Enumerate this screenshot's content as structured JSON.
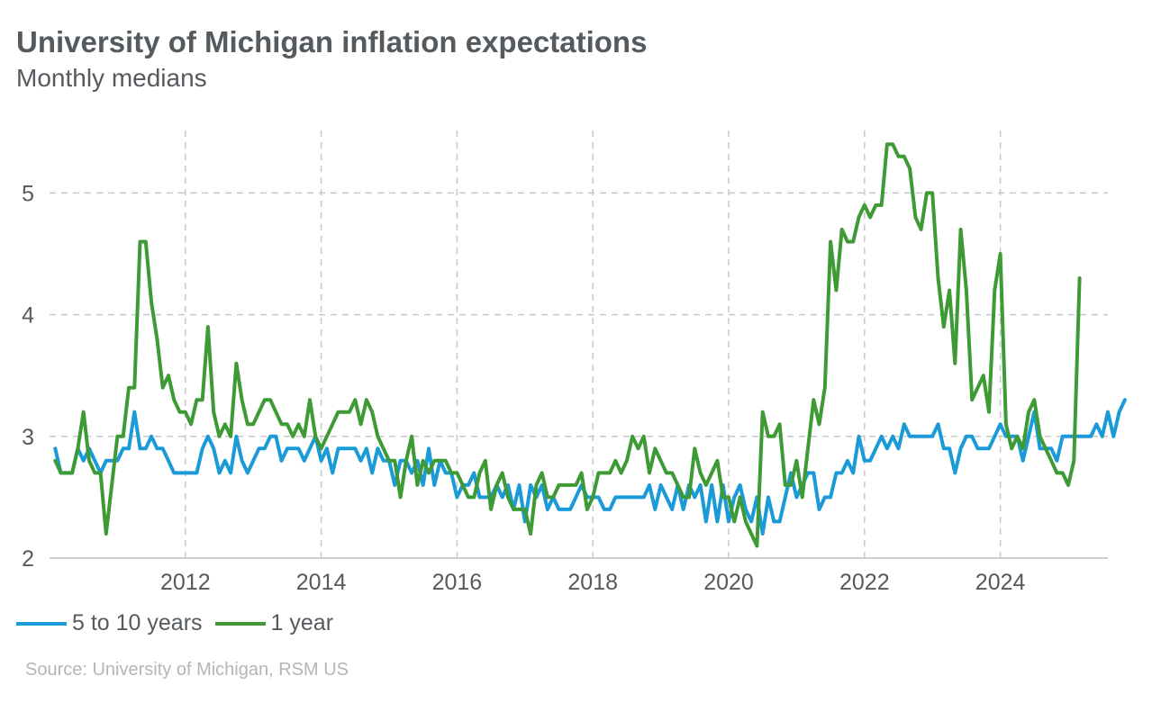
{
  "chart_data": {
    "type": "line",
    "title": "University of Michigan inflation expectations",
    "subtitle": "Monthly medians",
    "source": "Source: University of Michigan, RSM US",
    "x_start": "2010-02",
    "xlim": [
      "2010-01",
      "2025-08"
    ],
    "ylim": [
      2,
      5.55
    ],
    "yticks": [
      2,
      3,
      4,
      5
    ],
    "xticks": [
      "2012",
      "2014",
      "2016",
      "2018",
      "2020",
      "2022",
      "2024"
    ],
    "grid": true,
    "legend_position": "bottom-left",
    "series": [
      {
        "name": "5 to 10 years",
        "color": "#1a9ad6",
        "values": [
          2.9,
          2.7,
          2.7,
          2.7,
          2.9,
          2.8,
          2.9,
          2.8,
          2.7,
          2.8,
          2.8,
          2.8,
          2.9,
          2.9,
          3.2,
          2.9,
          2.9,
          3.0,
          2.9,
          2.9,
          2.8,
          2.7,
          2.7,
          2.7,
          2.7,
          2.7,
          2.9,
          3.0,
          2.9,
          2.7,
          2.8,
          2.7,
          3.0,
          2.8,
          2.7,
          2.8,
          2.9,
          2.9,
          3.0,
          3.0,
          2.8,
          2.9,
          2.9,
          2.9,
          2.8,
          2.9,
          3.0,
          2.8,
          2.9,
          2.7,
          2.9,
          2.9,
          2.9,
          2.9,
          2.8,
          2.9,
          2.7,
          2.9,
          2.8,
          2.8,
          2.6,
          2.8,
          2.8,
          2.7,
          2.8,
          2.6,
          2.9,
          2.6,
          2.8,
          2.7,
          2.7,
          2.5,
          2.6,
          2.6,
          2.7,
          2.5,
          2.5,
          2.5,
          2.6,
          2.5,
          2.6,
          2.4,
          2.6,
          2.3,
          2.6,
          2.5,
          2.6,
          2.4,
          2.5,
          2.4,
          2.4,
          2.4,
          2.5,
          2.6,
          2.5,
          2.5,
          2.5,
          2.4,
          2.4,
          2.5,
          2.5,
          2.5,
          2.5,
          2.5,
          2.5,
          2.6,
          2.4,
          2.6,
          2.5,
          2.4,
          2.6,
          2.4,
          2.6,
          2.5,
          2.6,
          2.3,
          2.6,
          2.3,
          2.6,
          2.3,
          2.5,
          2.6,
          2.4,
          2.3,
          2.5,
          2.2,
          2.5,
          2.3,
          2.3,
          2.5,
          2.7,
          2.5,
          2.6,
          2.7,
          2.7,
          2.4,
          2.5,
          2.5,
          2.7,
          2.7,
          2.8,
          2.7,
          3.0,
          2.8,
          2.8,
          2.9,
          3.0,
          2.9,
          3.0,
          2.9,
          3.1,
          3.0,
          3.0,
          3.0,
          3.0,
          3.0,
          3.1,
          2.9,
          2.9,
          2.7,
          2.9,
          3.0,
          3.0,
          2.9,
          2.9,
          2.9,
          3.0,
          3.1,
          3.0,
          3.0,
          3.0,
          2.8,
          3.0,
          3.2,
          2.9,
          2.9,
          2.9,
          2.8,
          3.0,
          3.0,
          3.0,
          3.0,
          3.0,
          3.0,
          3.1,
          3.0,
          3.2,
          3.0,
          3.2,
          3.3
        ]
      },
      {
        "name": "1 year",
        "color": "#3e9a35",
        "values": [
          2.8,
          2.7,
          2.7,
          2.7,
          2.9,
          3.2,
          2.8,
          2.7,
          2.7,
          2.2,
          2.6,
          3.0,
          3.0,
          3.4,
          3.4,
          4.6,
          4.6,
          4.1,
          3.8,
          3.4,
          3.5,
          3.3,
          3.2,
          3.2,
          3.1,
          3.3,
          3.3,
          3.9,
          3.2,
          3.0,
          3.1,
          3.0,
          3.6,
          3.3,
          3.1,
          3.1,
          3.2,
          3.3,
          3.3,
          3.2,
          3.1,
          3.1,
          3.0,
          3.1,
          3.0,
          3.3,
          3.0,
          2.9,
          3.0,
          3.1,
          3.2,
          3.2,
          3.2,
          3.3,
          3.1,
          3.3,
          3.2,
          3.0,
          2.9,
          2.8,
          2.8,
          2.5,
          2.8,
          3.0,
          2.6,
          2.8,
          2.7,
          2.8,
          2.8,
          2.8,
          2.7,
          2.7,
          2.6,
          2.5,
          2.5,
          2.7,
          2.8,
          2.4,
          2.6,
          2.7,
          2.5,
          2.4,
          2.4,
          2.4,
          2.2,
          2.6,
          2.7,
          2.5,
          2.5,
          2.6,
          2.6,
          2.6,
          2.6,
          2.7,
          2.4,
          2.5,
          2.7,
          2.7,
          2.7,
          2.8,
          2.7,
          2.8,
          3.0,
          2.9,
          3.0,
          2.7,
          2.9,
          2.8,
          2.7,
          2.7,
          2.6,
          2.5,
          2.5,
          2.9,
          2.7,
          2.6,
          2.7,
          2.8,
          2.5,
          2.5,
          2.3,
          2.5,
          2.3,
          2.2,
          2.1,
          3.2,
          3.0,
          3.0,
          3.1,
          2.6,
          2.6,
          2.8,
          2.5,
          2.9,
          3.3,
          3.1,
          3.4,
          4.6,
          4.2,
          4.7,
          4.6,
          4.6,
          4.8,
          4.9,
          4.8,
          4.9,
          4.9,
          5.4,
          5.4,
          5.3,
          5.3,
          5.2,
          4.8,
          4.7,
          5.0,
          5.0,
          4.3,
          3.9,
          4.2,
          3.6,
          4.7,
          4.2,
          3.3,
          3.4,
          3.5,
          3.2,
          4.2,
          4.5,
          3.1,
          2.9,
          3.0,
          2.9,
          3.2,
          3.3,
          3.0,
          2.9,
          2.8,
          2.7,
          2.7,
          2.6,
          2.8,
          4.3
        ]
      }
    ]
  }
}
